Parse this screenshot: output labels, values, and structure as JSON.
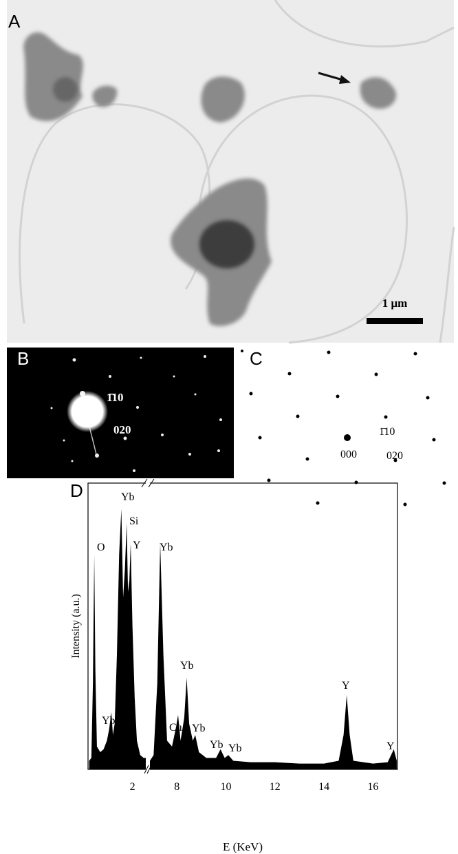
{
  "panels": {
    "a": {
      "label": "A",
      "scale_bar": "1 μm"
    },
    "b": {
      "label": "B",
      "spots": [
        "1̄10",
        "020"
      ]
    },
    "c": {
      "label": "C",
      "spots": [
        "000",
        "1̄10",
        "020"
      ]
    }
  },
  "chart_data": {
    "type": "area",
    "label": "D",
    "x_label": "E (KeV)",
    "y_label": "Intensity (a.u.)",
    "xlim": [
      0,
      17
    ],
    "x_break": [
      2.6,
      6.9
    ],
    "ylim": [
      0,
      100
    ],
    "xticks": [
      2,
      8,
      10,
      12,
      14,
      16
    ],
    "color": "#000000",
    "x": [
      0.05,
      0.15,
      0.22,
      0.28,
      0.33,
      0.4,
      0.55,
      0.7,
      0.85,
      0.95,
      1.05,
      1.12,
      1.2,
      1.3,
      1.4,
      1.5,
      1.58,
      1.66,
      1.74,
      1.8,
      1.86,
      1.92,
      2.0,
      2.1,
      2.2,
      2.35,
      2.5,
      2.6,
      4.5,
      6.9,
      7.05,
      7.2,
      7.32,
      7.45,
      7.6,
      7.8,
      7.95,
      8.05,
      8.15,
      8.3,
      8.4,
      8.5,
      8.65,
      8.75,
      8.9,
      9.2,
      9.6,
      9.78,
      9.95,
      10.1,
      10.3,
      11,
      12,
      13,
      14,
      14.6,
      14.8,
      14.93,
      15.05,
      15.2,
      16,
      16.6,
      16.85,
      16.97
    ],
    "values": [
      3,
      4,
      30,
      75,
      35,
      8,
      6,
      7,
      10,
      14,
      20,
      12,
      16,
      40,
      75,
      91,
      60,
      70,
      86,
      62,
      66,
      79,
      50,
      25,
      10,
      5,
      4,
      4,
      null,
      3,
      5,
      30,
      79,
      40,
      10,
      8,
      14,
      19,
      10,
      18,
      32,
      16,
      10,
      12,
      6,
      4,
      4,
      7,
      4,
      5,
      3,
      2.5,
      2.5,
      2,
      2,
      3,
      12,
      26,
      12,
      3,
      2,
      2.5,
      7,
      3
    ],
    "annotations": [
      "O",
      "Yb",
      "Yb",
      "Si",
      "Y",
      "Yb",
      "Cu",
      "Yb",
      "Yb",
      "Yb",
      "Yb",
      "Y",
      "Y"
    ]
  }
}
